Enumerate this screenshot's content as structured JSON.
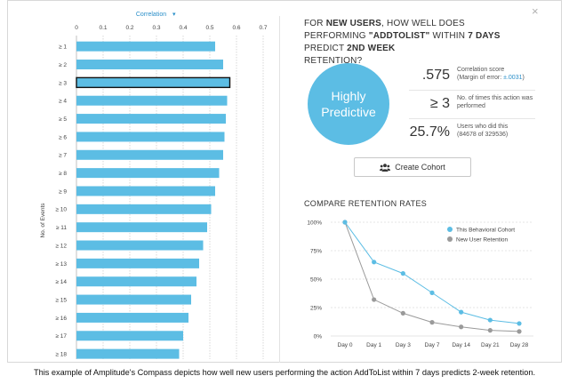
{
  "left_chart": {
    "axis_title": "Correlation",
    "axis_arrow": "▾",
    "y_label": "No. of Events",
    "ticks": [
      "0",
      "0.1",
      "0.2",
      "0.3",
      "0.4",
      "0.5",
      "0.6",
      "0.7"
    ],
    "bar_color": "#5cbde4",
    "selected_index": 2
  },
  "right_panel": {
    "title_prefix": "FOR ",
    "title_new_users": "NEW USERS",
    "title_mid1": ", HOW WELL DOES PERFORMING ",
    "title_event": "\"ADDTOLIST\"",
    "title_mid2": " WITHIN ",
    "title_days": "7 DAYS",
    "title_mid3": " PREDICT ",
    "title_week": "2ND WEEK",
    "title_end": "RETENTION?",
    "circle_line1": "Highly",
    "circle_line2": "Predictive",
    "stats": {
      "corr_value": ".575",
      "corr_label": "Correlation score",
      "corr_margin_prefix": "(Margin of error: ",
      "corr_margin_value": "±.0031",
      "corr_margin_suffix": ")",
      "times_value": "≥ 3",
      "times_label": "No. of times this action was performed",
      "users_value": "25.7%",
      "users_label": "Users who did this",
      "users_counts": "(84678 of 329536)"
    },
    "create_cohort_label": "Create Cohort",
    "close_label": "×",
    "retention_title": "COMPARE RETENTION RATES"
  },
  "caption": "This example of Amplitude's Compass depicts how well new users performing the action AddToList within 7 days predicts 2-week retention.",
  "chart_data": [
    {
      "type": "bar",
      "orientation": "horizontal",
      "title": "Correlation",
      "ylabel": "No. of Events",
      "xlim": [
        0,
        0.7
      ],
      "categories": [
        "≥ 1",
        "≥ 2",
        "≥ 3",
        "≥ 4",
        "≥ 5",
        "≥ 6",
        "≥ 7",
        "≥ 8",
        "≥ 9",
        "≥ 10",
        "≥ 11",
        "≥ 12",
        "≥ 13",
        "≥ 14",
        "≥ 15",
        "≥ 16",
        "≥ 17",
        "≥ 18"
      ],
      "values": [
        0.52,
        0.55,
        0.575,
        0.565,
        0.56,
        0.555,
        0.55,
        0.535,
        0.52,
        0.505,
        0.49,
        0.475,
        0.46,
        0.45,
        0.43,
        0.42,
        0.4,
        0.385
      ]
    },
    {
      "type": "line",
      "title": "COMPARE RETENTION RATES",
      "categories": [
        "Day 0",
        "Day 1",
        "Day 3",
        "Day 7",
        "Day 14",
        "Day 21",
        "Day 28"
      ],
      "ylim": [
        0,
        100
      ],
      "yticks": [
        "0%",
        "25%",
        "50%",
        "75%",
        "100%"
      ],
      "legend_position": "top-right",
      "series": [
        {
          "name": "This Behavioral Cohort",
          "color": "#5cbde4",
          "values": [
            100,
            65,
            55,
            38,
            21,
            14,
            11
          ]
        },
        {
          "name": "New User Retention",
          "color": "#9a9a9a",
          "values": [
            100,
            32,
            20,
            12,
            8,
            5,
            4
          ]
        }
      ]
    }
  ]
}
